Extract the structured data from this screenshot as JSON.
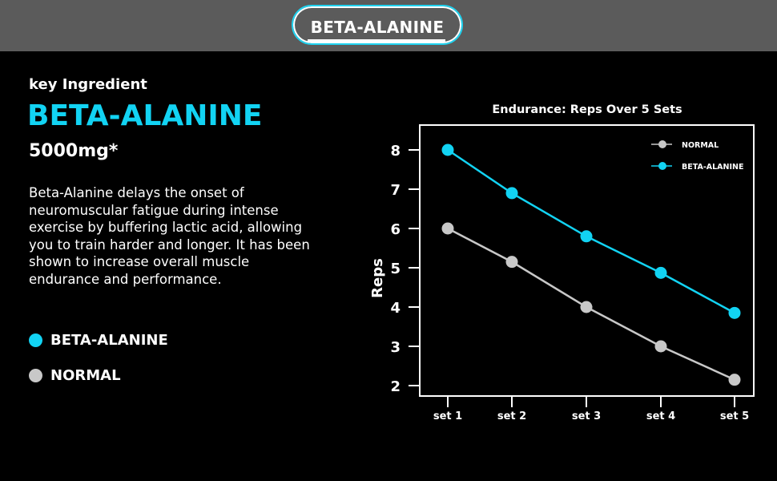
{
  "header": {
    "badge": "BETA-ALANINE"
  },
  "content": {
    "kicker": "key Ingredient",
    "title": "BETA-ALANINE",
    "dose": "5000mg*",
    "description": "Beta-Alanine delays the onset of neuromuscular fatigue during intense exercise by buffering lactic acid, allowing you to train harder and longer. It has been shown to increase overall muscle endurance and performance.",
    "legend": [
      {
        "label": "BETA-ALANINE",
        "color": "#12d3f3"
      },
      {
        "label": "NORMAL",
        "color": "#c8c8c8"
      }
    ]
  },
  "chart_data": {
    "type": "line",
    "title": "Endurance: Reps Over 5 Sets",
    "xlabel": "",
    "ylabel": "Reps",
    "categories": [
      "set 1",
      "set 2",
      "set 3",
      "set 4",
      "set 5"
    ],
    "yticks": [
      2,
      3,
      4,
      5,
      6,
      7,
      8
    ],
    "ylim": [
      2,
      8
    ],
    "legend_position": "top-right",
    "series": [
      {
        "name": "NORMAL",
        "color": "#c8c8c8",
        "values": [
          6.0,
          5.15,
          4.0,
          3.0,
          2.15
        ]
      },
      {
        "name": "BETA-ALANINE",
        "color": "#12d3f3",
        "values": [
          8.0,
          6.9,
          5.8,
          4.87,
          3.85
        ]
      }
    ]
  }
}
